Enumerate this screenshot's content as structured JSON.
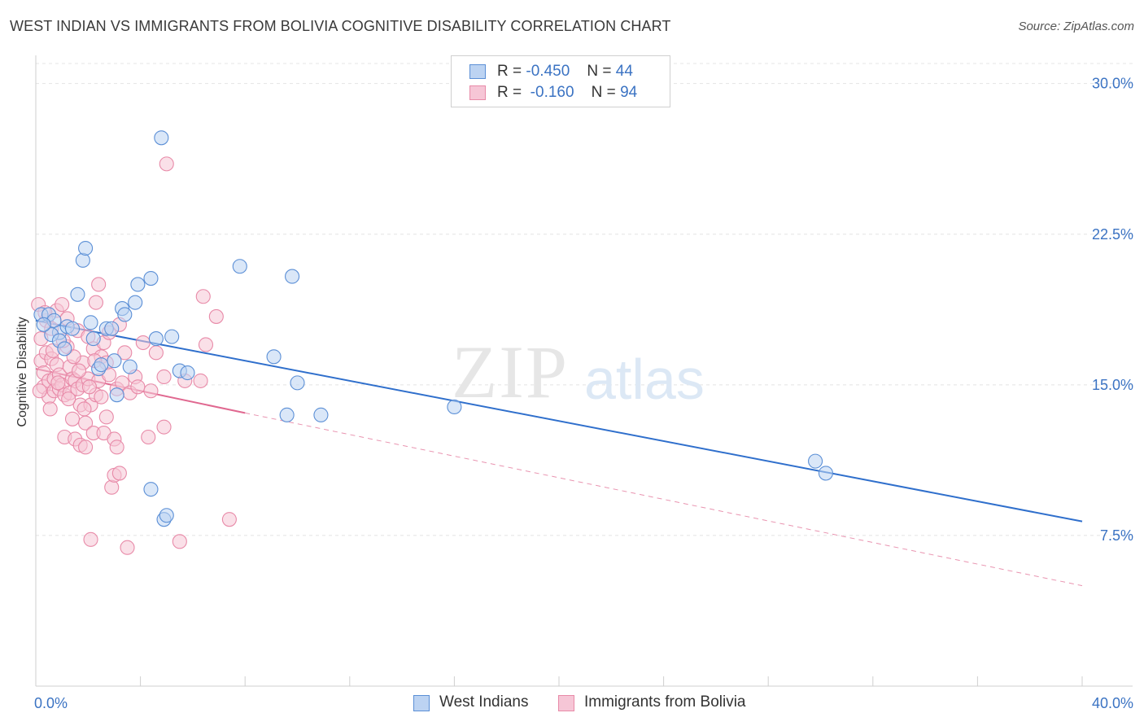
{
  "chart_data": {
    "type": "scatter",
    "title": "WEST INDIAN VS IMMIGRANTS FROM BOLIVIA COGNITIVE DISABILITY CORRELATION CHART",
    "source": "Source: ZipAtlas.com",
    "xlabel": "",
    "ylabel": "Cognitive Disability",
    "xlim": [
      0,
      40
    ],
    "ylim": [
      0,
      31
    ],
    "x_tick_labels": [
      "0.0%",
      "40.0%"
    ],
    "y_ticks": [
      {
        "value": 7.5,
        "label": "7.5%"
      },
      {
        "value": 15.0,
        "label": "15.0%"
      },
      {
        "value": 22.5,
        "label": "22.5%"
      },
      {
        "value": 30.0,
        "label": "30.0%"
      }
    ],
    "watermark": {
      "zip": "ZIP",
      "atlas": "atlas"
    },
    "legend": {
      "r_label": "R =",
      "n_label": "N =",
      "rows": [
        {
          "r": "-0.450",
          "n": "44"
        },
        {
          "r": "-0.160",
          "n": "94"
        }
      ]
    },
    "series": [
      {
        "name": "West Indians",
        "color": "#5b8fd6",
        "fill": "#bcd3f2",
        "trend": {
          "x": [
            0,
            40
          ],
          "y": [
            18.2,
            8.2
          ],
          "style": "solid",
          "color": "#2f6fcc"
        },
        "points": [
          [
            0.2,
            18.5
          ],
          [
            0.5,
            18.5
          ],
          [
            0.7,
            18.2
          ],
          [
            0.9,
            17.6
          ],
          [
            0.6,
            17.5
          ],
          [
            0.9,
            17.2
          ],
          [
            1.1,
            16.8
          ],
          [
            1.2,
            17.9
          ],
          [
            1.4,
            17.8
          ],
          [
            1.6,
            19.5
          ],
          [
            1.8,
            21.2
          ],
          [
            1.9,
            21.8
          ],
          [
            2.1,
            18.1
          ],
          [
            2.2,
            17.3
          ],
          [
            2.4,
            15.8
          ],
          [
            2.5,
            16.0
          ],
          [
            2.7,
            17.8
          ],
          [
            2.9,
            17.8
          ],
          [
            3.0,
            16.2
          ],
          [
            3.1,
            14.5
          ],
          [
            3.3,
            18.8
          ],
          [
            3.4,
            18.5
          ],
          [
            3.6,
            15.9
          ],
          [
            3.8,
            19.1
          ],
          [
            3.9,
            20.0
          ],
          [
            4.4,
            20.3
          ],
          [
            4.4,
            9.8
          ],
          [
            4.6,
            17.3
          ],
          [
            4.8,
            27.3
          ],
          [
            4.9,
            8.3
          ],
          [
            5.0,
            8.5
          ],
          [
            5.2,
            17.4
          ],
          [
            5.5,
            15.7
          ],
          [
            5.8,
            15.6
          ],
          [
            7.8,
            20.9
          ],
          [
            9.1,
            16.4
          ],
          [
            9.8,
            20.4
          ],
          [
            10.0,
            15.1
          ],
          [
            9.6,
            13.5
          ],
          [
            10.9,
            13.5
          ],
          [
            16.0,
            13.9
          ],
          [
            29.8,
            11.2
          ],
          [
            30.2,
            10.6
          ],
          [
            0.3,
            18.0
          ]
        ]
      },
      {
        "name": "Immigrants from Bolivia",
        "color": "#e88aa8",
        "fill": "#f6c6d6",
        "trend": {
          "x": [
            0,
            8
          ],
          "y": [
            15.8,
            13.6
          ],
          "style": "solid",
          "color": "#e06890",
          "extension": {
            "x": [
              8,
              40
            ],
            "y": [
              13.6,
              5.0
            ],
            "style": "dashed"
          }
        },
        "points": [
          [
            0.1,
            19.0
          ],
          [
            0.2,
            17.3
          ],
          [
            0.2,
            16.2
          ],
          [
            0.3,
            15.6
          ],
          [
            0.3,
            14.9
          ],
          [
            0.4,
            18.2
          ],
          [
            0.4,
            16.6
          ],
          [
            0.5,
            15.2
          ],
          [
            0.5,
            14.4
          ],
          [
            0.6,
            17.8
          ],
          [
            0.6,
            16.3
          ],
          [
            0.7,
            15.3
          ],
          [
            0.7,
            14.7
          ],
          [
            0.8,
            18.7
          ],
          [
            0.8,
            16.0
          ],
          [
            0.9,
            15.5
          ],
          [
            0.9,
            14.8
          ],
          [
            1.0,
            19.0
          ],
          [
            1.0,
            15.0
          ],
          [
            1.1,
            14.5
          ],
          [
            1.1,
            12.4
          ],
          [
            1.2,
            18.3
          ],
          [
            1.2,
            16.9
          ],
          [
            1.3,
            15.9
          ],
          [
            1.3,
            14.6
          ],
          [
            1.4,
            15.3
          ],
          [
            1.4,
            13.3
          ],
          [
            1.5,
            12.3
          ],
          [
            1.5,
            15.2
          ],
          [
            1.6,
            17.7
          ],
          [
            1.6,
            14.8
          ],
          [
            1.7,
            14.0
          ],
          [
            1.7,
            12.0
          ],
          [
            1.8,
            16.1
          ],
          [
            1.8,
            15.0
          ],
          [
            1.9,
            13.1
          ],
          [
            1.9,
            11.9
          ],
          [
            2.0,
            17.4
          ],
          [
            2.0,
            15.3
          ],
          [
            2.1,
            14.0
          ],
          [
            2.1,
            7.3
          ],
          [
            2.2,
            16.8
          ],
          [
            2.2,
            12.6
          ],
          [
            2.3,
            19.1
          ],
          [
            2.3,
            14.5
          ],
          [
            2.4,
            20.0
          ],
          [
            2.4,
            15.2
          ],
          [
            2.5,
            16.4
          ],
          [
            2.5,
            14.4
          ],
          [
            2.6,
            12.6
          ],
          [
            2.6,
            17.1
          ],
          [
            2.7,
            16.1
          ],
          [
            2.7,
            13.4
          ],
          [
            2.8,
            15.5
          ],
          [
            2.8,
            17.6
          ],
          [
            2.9,
            9.9
          ],
          [
            3.0,
            12.3
          ],
          [
            3.0,
            10.5
          ],
          [
            3.1,
            14.8
          ],
          [
            3.1,
            11.9
          ],
          [
            3.2,
            18.0
          ],
          [
            3.2,
            10.6
          ],
          [
            3.3,
            15.1
          ],
          [
            3.4,
            16.6
          ],
          [
            3.5,
            6.9
          ],
          [
            3.6,
            14.6
          ],
          [
            3.8,
            15.4
          ],
          [
            3.9,
            14.9
          ],
          [
            4.1,
            17.1
          ],
          [
            4.3,
            12.4
          ],
          [
            4.4,
            14.7
          ],
          [
            4.6,
            16.6
          ],
          [
            4.9,
            15.4
          ],
          [
            4.9,
            12.9
          ],
          [
            5.0,
            26.0
          ],
          [
            5.5,
            7.2
          ],
          [
            5.7,
            15.2
          ],
          [
            6.3,
            15.2
          ],
          [
            6.4,
            19.4
          ],
          [
            6.5,
            17.0
          ],
          [
            6.9,
            18.4
          ],
          [
            7.4,
            8.3
          ],
          [
            0.15,
            14.7
          ],
          [
            0.35,
            18.6
          ],
          [
            0.55,
            13.8
          ],
          [
            0.65,
            16.7
          ],
          [
            0.85,
            15.1
          ],
          [
            1.05,
            17.2
          ],
          [
            1.25,
            14.3
          ],
          [
            1.45,
            16.4
          ],
          [
            1.65,
            15.7
          ],
          [
            1.85,
            13.8
          ],
          [
            2.05,
            14.9
          ],
          [
            2.25,
            16.2
          ]
        ]
      }
    ]
  }
}
